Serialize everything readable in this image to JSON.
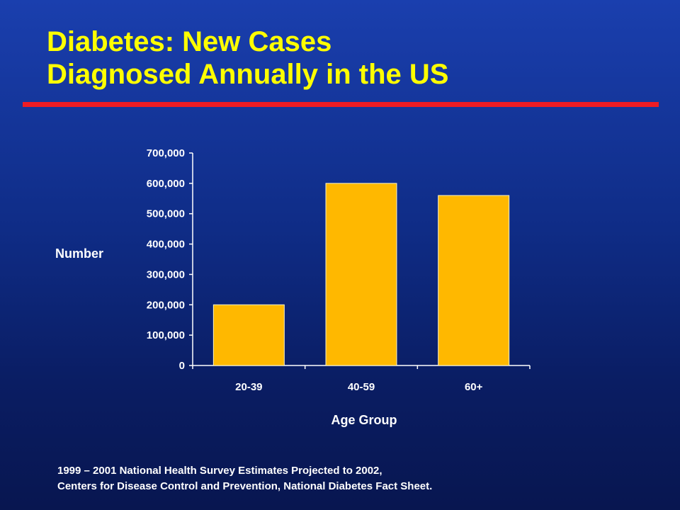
{
  "title": {
    "line1": "Diabetes: New Cases",
    "line2": "Diagnosed Annually in the US"
  },
  "colors": {
    "title": "#ffff00",
    "rule": "#ee1c24",
    "bar": "#ffb800",
    "text": "#ffffff"
  },
  "chart_data": {
    "type": "bar",
    "categories": [
      "20-39",
      "40-59",
      "60+"
    ],
    "values": [
      200000,
      600000,
      560000
    ],
    "ylim": [
      0,
      700000
    ],
    "yticks": [
      0,
      100000,
      200000,
      300000,
      400000,
      500000,
      600000,
      700000
    ],
    "ytick_labels": [
      "0",
      "100,000",
      "200,000",
      "300,000",
      "400,000",
      "500,000",
      "600,000",
      "700,000"
    ],
    "xlabel": "Age Group",
    "ylabel": "Number",
    "grid": false,
    "legend": false
  },
  "source": {
    "line1": "1999 – 2001 National Health Survey Estimates Projected to 2002,",
    "line2": "Centers for Disease Control and Prevention, National Diabetes Fact Sheet."
  }
}
